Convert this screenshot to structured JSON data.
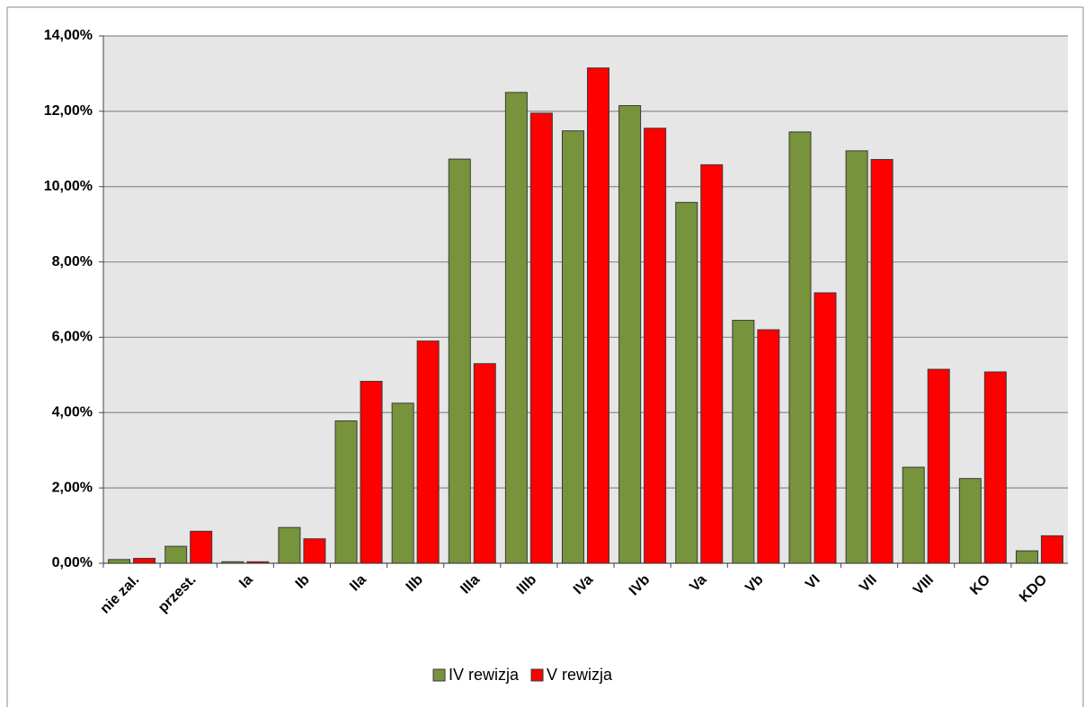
{
  "chart_data": {
    "type": "bar",
    "categories": [
      "nie zal.",
      "przest.",
      "Ia",
      "Ib",
      "IIa",
      "IIb",
      "IIIa",
      "IIIb",
      "IVa",
      "IVb",
      "Va",
      "Vb",
      "VI",
      "VII",
      "VIII",
      "KO",
      "KDO"
    ],
    "series": [
      {
        "name": "IV rewizja",
        "color": "#77933c",
        "values": [
          0.1,
          0.45,
          0.04,
          0.95,
          3.78,
          4.25,
          10.73,
          12.5,
          11.48,
          12.15,
          9.58,
          6.45,
          11.45,
          10.95,
          2.55,
          2.25,
          0.33
        ]
      },
      {
        "name": "V rewizja",
        "color": "#ff0000",
        "values": [
          0.13,
          0.85,
          0.04,
          0.65,
          4.83,
          5.9,
          5.3,
          11.95,
          13.15,
          11.55,
          10.58,
          6.2,
          7.18,
          10.72,
          5.15,
          5.08,
          0.73
        ]
      }
    ],
    "ylim": [
      0,
      14
    ],
    "yticks": [
      {
        "value": 0,
        "label": "0,00%"
      },
      {
        "value": 2,
        "label": "2,00%"
      },
      {
        "value": 4,
        "label": "4,00%"
      },
      {
        "value": 6,
        "label": "6,00%"
      },
      {
        "value": 8,
        "label": "8,00%"
      },
      {
        "value": 10,
        "label": "10,00%"
      },
      {
        "value": 12,
        "label": "12,00%"
      },
      {
        "value": 14,
        "label": "14,00%"
      }
    ],
    "grid": true,
    "legend": "bottom"
  }
}
